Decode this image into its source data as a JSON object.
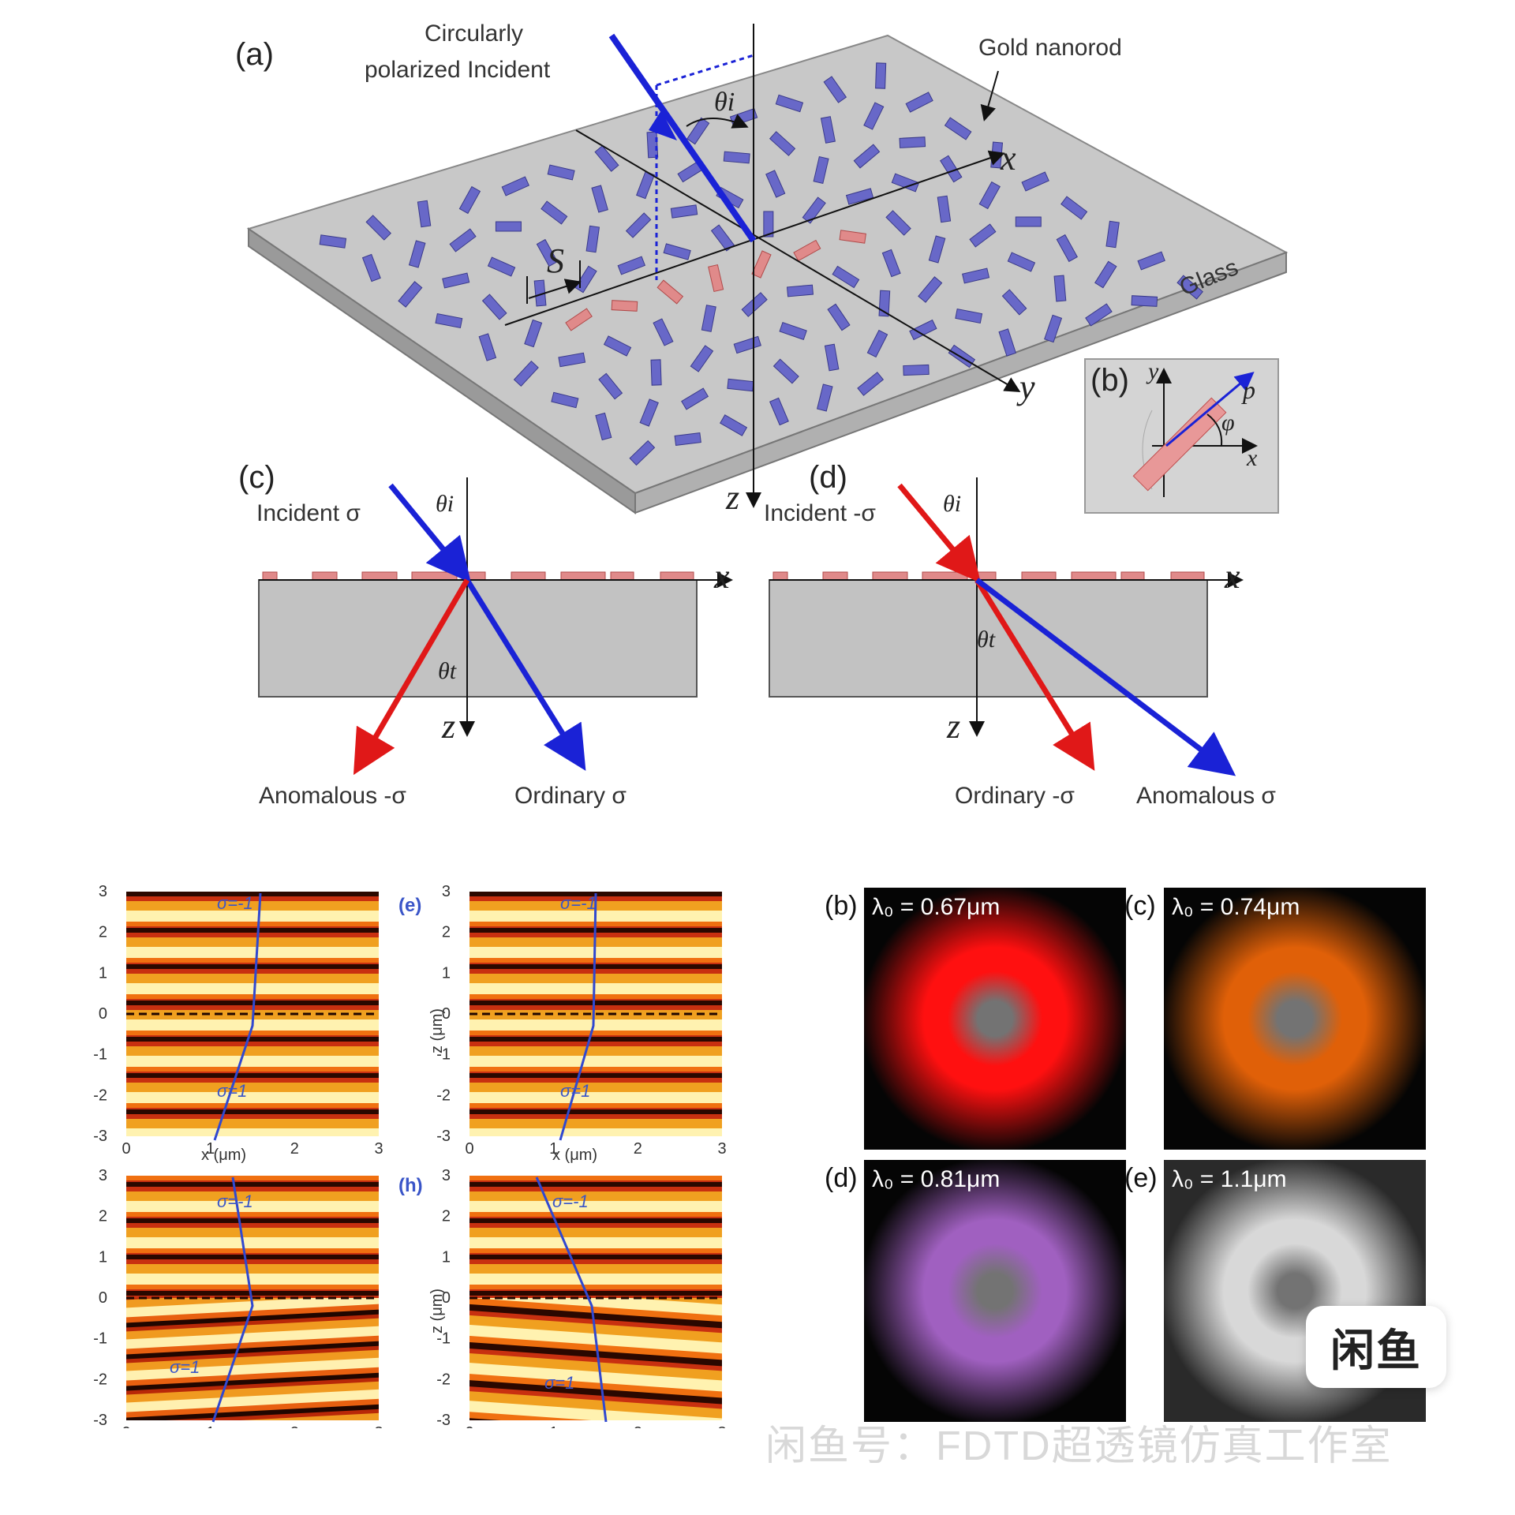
{
  "panel_a": {
    "letter": "(a)",
    "incident_label_line1": "Circularly",
    "incident_label_line2": "polarized Incident",
    "gold_label": "Gold nanorod",
    "glass_label": "Glass",
    "s_label": "S",
    "theta_label": "θi",
    "axis_x": "x",
    "axis_y": "y",
    "axis_z": "z"
  },
  "panel_b_inset": {
    "letter": "(b)",
    "axis_x": "x",
    "axis_y": "y",
    "p_label": "p",
    "phi_label": "φ"
  },
  "panel_c": {
    "letter": "(c)",
    "incident": "Incident σ",
    "theta_i": "θi",
    "theta_t": "θt",
    "axis_x": "x",
    "axis_z": "z",
    "anomalous": "Anomalous -σ",
    "ordinary": "Ordinary σ"
  },
  "panel_d": {
    "letter": "(d)",
    "incident": "Incident -σ",
    "theta_i": "θi",
    "theta_t": "θt",
    "axis_x": "x",
    "axis_z": "z",
    "ordinary": "Ordinary -σ",
    "anomalous": "Anomalous σ"
  },
  "field_plots": {
    "tag_e": "(e)",
    "tag_h": "(h)",
    "x_axis_label": "x (μm)",
    "z_axis_label": "z (μm)",
    "x_ticks": [
      "0",
      "1",
      "2",
      "3"
    ],
    "z_ticks": [
      "3",
      "2",
      "1",
      "0",
      "-1",
      "-2",
      "-3"
    ],
    "sigma_in": "σ=-1",
    "sigma_out": "σ=1"
  },
  "photos": [
    {
      "letter": "(b)",
      "label": "λ₀ = 0.67μm",
      "color": "#ff1010"
    },
    {
      "letter": "(c)",
      "label": "λ₀ = 0.74μm",
      "color": "#e06008"
    },
    {
      "letter": "(d)",
      "label": "λ₀ = 0.81μm",
      "color": "#a060c0"
    },
    {
      "letter": "(e)",
      "label": "λ₀ = 1.1μm",
      "color": "#d8d8d8"
    }
  ],
  "logo_text": "闲鱼",
  "watermark": "闲鱼号：FDTD超透镜仿真工作室"
}
